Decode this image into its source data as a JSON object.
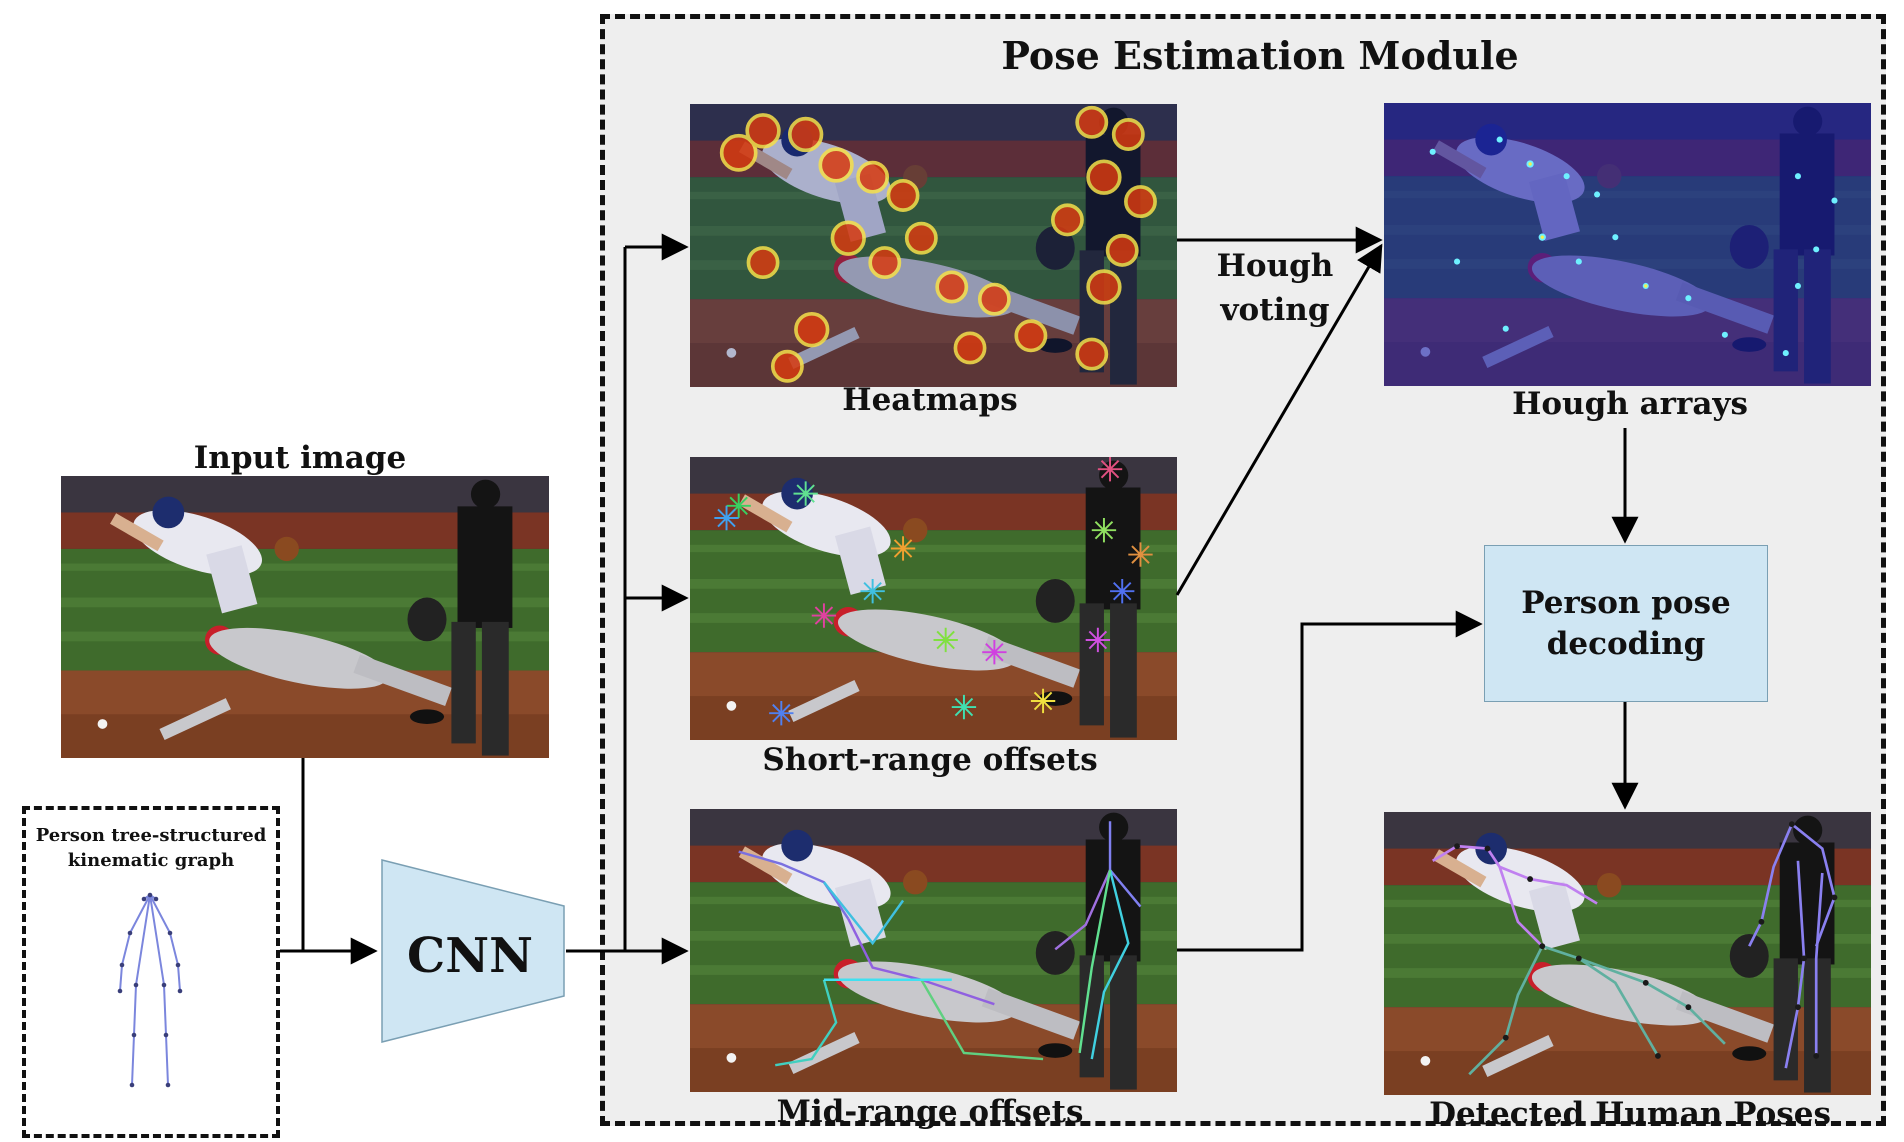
{
  "title": "Pose Estimation Module",
  "input_image_label": "Input image",
  "graph_label_line1": "Person tree-structured",
  "graph_label_line2": "kinematic graph",
  "cnn_label": "CNN",
  "heatmaps_label": "Heatmaps",
  "short_range_label": "Short-range offsets",
  "mid_range_label": "Mid-range offsets",
  "hough_voting_line1": "Hough",
  "hough_voting_line2": "voting",
  "hough_arrays_label": "Hough arrays",
  "decoding_line1": "Person pose",
  "decoding_line2": "decoding",
  "detected_label": "Detected Human Poses",
  "colors": {
    "module_background": "#eeeeee",
    "cnn_fill": "#cfe6f3",
    "decoding_fill": "#cfe6f3",
    "arrow": "#000000",
    "skeleton": "#7b86dd"
  }
}
